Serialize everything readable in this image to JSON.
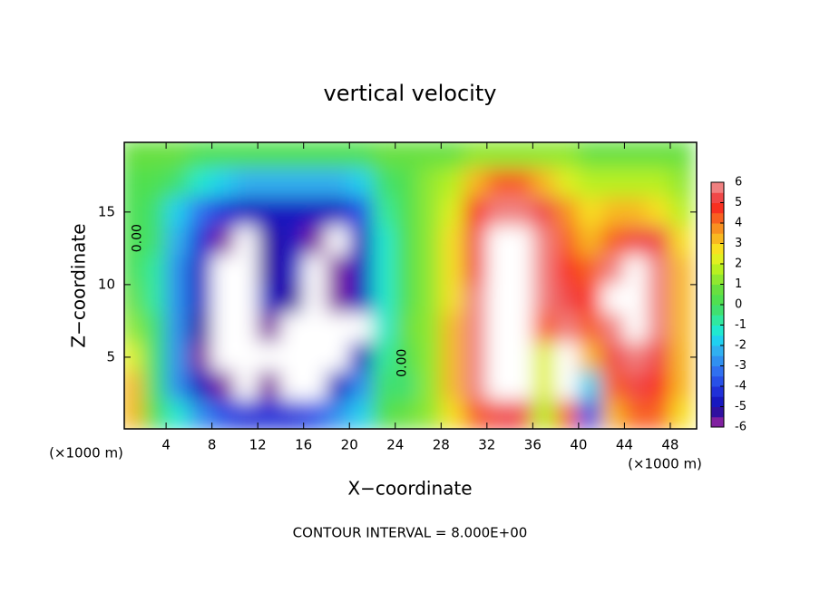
{
  "chart_data": {
    "type": "contour",
    "title": "vertical velocity",
    "xlabel": "X−coordinate",
    "ylabel": "Z−coordinate",
    "x_unit_label": "(×1000 m)",
    "footer": "CONTOUR INTERVAL = 8.000E+00",
    "xlim": [
      0.35,
      50.3
    ],
    "ylim": [
      0.06,
      19.8
    ],
    "xticks": [
      4,
      8,
      12,
      16,
      20,
      24,
      28,
      32,
      36,
      40,
      44,
      48
    ],
    "yticks": [
      5,
      10,
      15
    ],
    "clim": [
      -6,
      6
    ],
    "cticks": [
      -6,
      -5,
      -4,
      -3,
      -2,
      -1,
      0,
      1,
      2,
      3,
      4,
      5,
      6
    ],
    "colors": [
      "#8020a0",
      "#3010a0",
      "#1818c0",
      "#2030d8",
      "#2850e8",
      "#3070f0",
      "#3090f0",
      "#30b0f0",
      "#20d0f0",
      "#20e8d0",
      "#30e8a0",
      "#40e070",
      "#50e050",
      "#68e040",
      "#90e830",
      "#b8f020",
      "#e0f020",
      "#f8e020",
      "#f8b820",
      "#f89020",
      "#f86020",
      "#f83020",
      "#f04848",
      "#f08080"
    ],
    "over_color": "#ffffff",
    "x": [
      1,
      3,
      5,
      7,
      9,
      11,
      13,
      15,
      17,
      19,
      21,
      23,
      25,
      27,
      29,
      31,
      33,
      35,
      37,
      39,
      41,
      43,
      45,
      47,
      49
    ],
    "z": [
      19,
      17,
      15,
      13,
      11,
      9,
      7,
      5,
      3,
      1
    ],
    "values": [
      [
        0.5,
        0.5,
        0.5,
        0.3,
        0.3,
        0.3,
        0.3,
        0.3,
        0.3,
        0.3,
        0.3,
        0.5,
        0.5,
        0.8,
        0.8,
        1,
        1.2,
        1.2,
        1,
        1,
        0.8,
        0.8,
        0.8,
        0.8,
        0.8
      ],
      [
        0.3,
        0,
        -0.5,
        -1.5,
        -2,
        -2.5,
        -2.5,
        -2.5,
        -2.5,
        -2.5,
        -2,
        -0.5,
        0.3,
        1,
        1.5,
        3,
        4,
        4,
        3,
        2,
        1.5,
        1.5,
        1.5,
        1.5,
        1
      ],
      [
        0,
        -0.5,
        -2,
        -3.5,
        -4.5,
        -5,
        -5,
        -5,
        -5,
        -5,
        -4,
        -1,
        0.3,
        1,
        2,
        4.5,
        5.5,
        6,
        5,
        3.5,
        2.5,
        3,
        3,
        2.5,
        1.5
      ],
      [
        0,
        -0.5,
        -2.5,
        -4.5,
        -6,
        -7,
        -5.5,
        -5,
        -6,
        -7,
        -5,
        -1.5,
        0.3,
        1,
        2.5,
        5,
        7,
        7,
        5.5,
        4,
        3,
        4,
        5,
        5,
        2.5
      ],
      [
        0,
        -1,
        -3,
        -5,
        -7,
        -8,
        -5.5,
        -5,
        -7,
        -6,
        -5,
        -1.5,
        0.3,
        1,
        2.5,
        5,
        7,
        7,
        5.5,
        4.5,
        4,
        5.5,
        7,
        6,
        3
      ],
      [
        0.5,
        -1,
        -3,
        -5,
        -7,
        -8,
        -5,
        -5.5,
        -7,
        -6,
        -5,
        -1.5,
        0.3,
        1,
        2.5,
        5.5,
        7,
        7.5,
        5.5,
        5,
        4.5,
        6.5,
        7,
        6,
        3
      ],
      [
        1,
        -0.5,
        -3,
        -5.5,
        -7,
        -8,
        -6,
        -7,
        -7,
        -7,
        -6.5,
        -1.5,
        0.5,
        1,
        3,
        6,
        8,
        8,
        4,
        6,
        4,
        5.5,
        7,
        6,
        3
      ],
      [
        2,
        -0.5,
        -3,
        -6,
        -7,
        -8,
        -7,
        -7,
        -7,
        -7,
        -5,
        -1,
        0,
        1,
        3,
        6,
        8,
        8,
        2,
        7,
        3,
        5,
        6,
        5,
        3
      ],
      [
        3,
        -0.5,
        -3,
        -5,
        -6,
        -7,
        -6,
        -6.5,
        -7,
        -5,
        -3,
        -0.5,
        -0.5,
        1,
        3,
        5.5,
        7,
        7,
        2,
        6.5,
        -2,
        4,
        5,
        4.5,
        3
      ],
      [
        3,
        0,
        -1.5,
        -3,
        -4,
        -4.5,
        -4.5,
        -4.5,
        -4,
        -3,
        -2,
        0,
        0.5,
        1,
        2.5,
        4,
        5,
        5,
        1.5,
        4,
        -4,
        3,
        4,
        4,
        2.5
      ]
    ],
    "contour_labels": [
      {
        "text": "0.00",
        "x": 1.5,
        "z": 13.2
      },
      {
        "text": "0.00",
        "x": 24.6,
        "z": 4.6
      }
    ]
  }
}
